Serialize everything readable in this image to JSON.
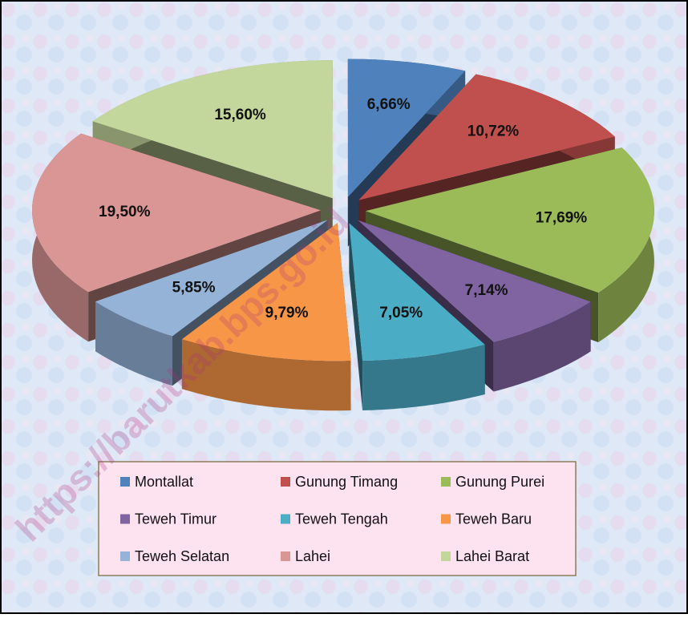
{
  "chart_data": {
    "type": "pie",
    "categories": [
      "Montallat",
      "Gunung Timang",
      "Gunung Purei",
      "Teweh Timur",
      "Teweh Tengah",
      "Teweh Baru",
      "Teweh Selatan",
      "Lahei",
      "Lahei Barat"
    ],
    "values": [
      6.66,
      10.72,
      17.69,
      7.14,
      7.05,
      9.79,
      5.85,
      19.5,
      15.6
    ],
    "value_labels": [
      "6,66%",
      "10,72%",
      "17,69%",
      "7,14%",
      "7,05%",
      "9,79%",
      "5,85%",
      "19,50%",
      "15,60%"
    ],
    "colors": [
      "#4f81bd",
      "#c0504d",
      "#9bbb59",
      "#8064a2",
      "#4bacc6",
      "#f79646",
      "#95b3d7",
      "#d99694",
      "#c3d69b"
    ],
    "watermark": "https://barutkab.bps.go.id"
  }
}
